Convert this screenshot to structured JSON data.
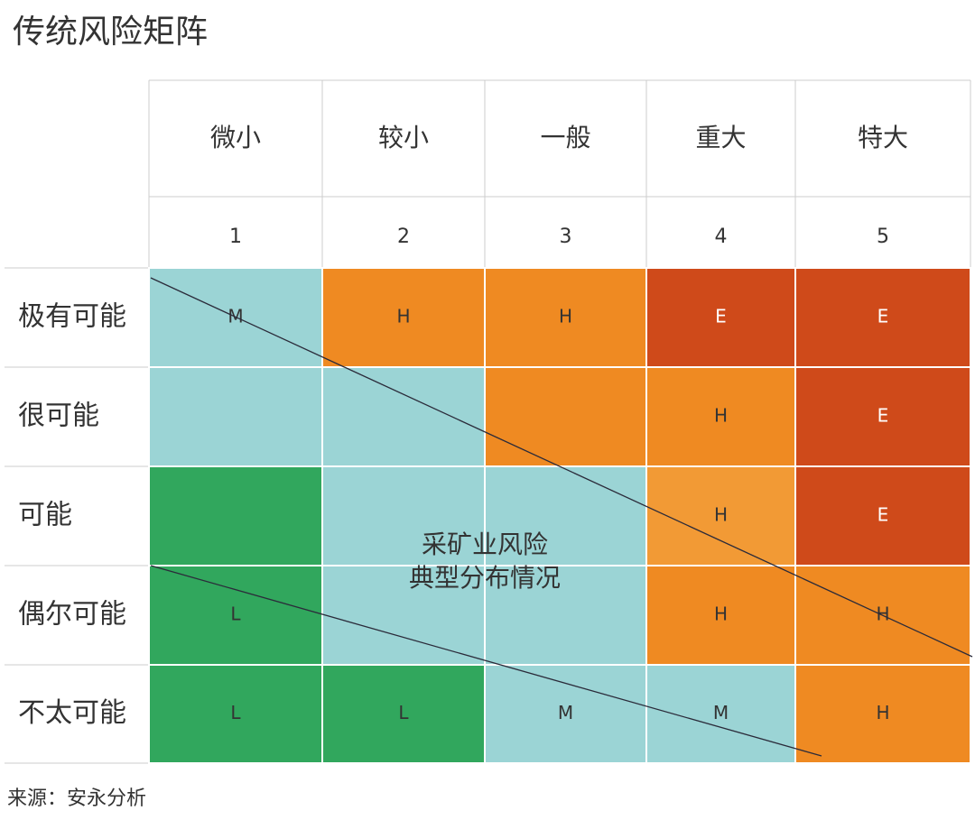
{
  "title": "传统风险矩阵",
  "columns": [
    {
      "label": "微小",
      "number": "1"
    },
    {
      "label": "较小",
      "number": "2"
    },
    {
      "label": "一般",
      "number": "3"
    },
    {
      "label": "重大",
      "number": "4"
    },
    {
      "label": "特大",
      "number": "5"
    }
  ],
  "rows": [
    {
      "label": "极有可能",
      "cells": [
        {
          "label": "M",
          "color": "#9bd4d5"
        },
        {
          "label": "H",
          "color": "#ef8a22"
        },
        {
          "label": "H",
          "color": "#ef8a22"
        },
        {
          "label": "E",
          "color": "#cf4a1a"
        },
        {
          "label": "E",
          "color": "#cf4a1a"
        }
      ]
    },
    {
      "label": "很可能",
      "cells": [
        {
          "color": "#9bd4d5"
        },
        {
          "color": "#9bd4d5"
        },
        {
          "color": "#ef8a22"
        },
        {
          "label": "H",
          "color": "#ef8a22"
        },
        {
          "label": "E",
          "color": "#cf4a1a"
        }
      ]
    },
    {
      "label": "可能",
      "cells": [
        {
          "color": "#31a75d"
        },
        {
          "color": "#9bd4d5"
        },
        {
          "color": "#9bd4d5"
        },
        {
          "label": "H",
          "color": "#f29a35"
        },
        {
          "label": "E",
          "color": "#cf4a1a"
        }
      ]
    },
    {
      "label": "偶尔可能",
      "cells": [
        {
          "label": "L",
          "color": "#31a75d"
        },
        {
          "color": "#9bd4d5"
        },
        {
          "color": "#9bd4d5"
        },
        {
          "label": "H",
          "color": "#ef8a22"
        },
        {
          "label": "H",
          "color": "#ef8a22"
        }
      ]
    },
    {
      "label": "不太可能",
      "cells": [
        {
          "label": "L",
          "color": "#31a75d"
        },
        {
          "label": "L",
          "color": "#31a75d"
        },
        {
          "label": "M",
          "color": "#9bd4d5"
        },
        {
          "label": "M",
          "color": "#9bd4d5"
        },
        {
          "label": "H",
          "color": "#ef8a22"
        }
      ]
    }
  ],
  "annotation": [
    "采矿业风险",
    "典型分布情况"
  ],
  "source": "来源：安永分析"
}
